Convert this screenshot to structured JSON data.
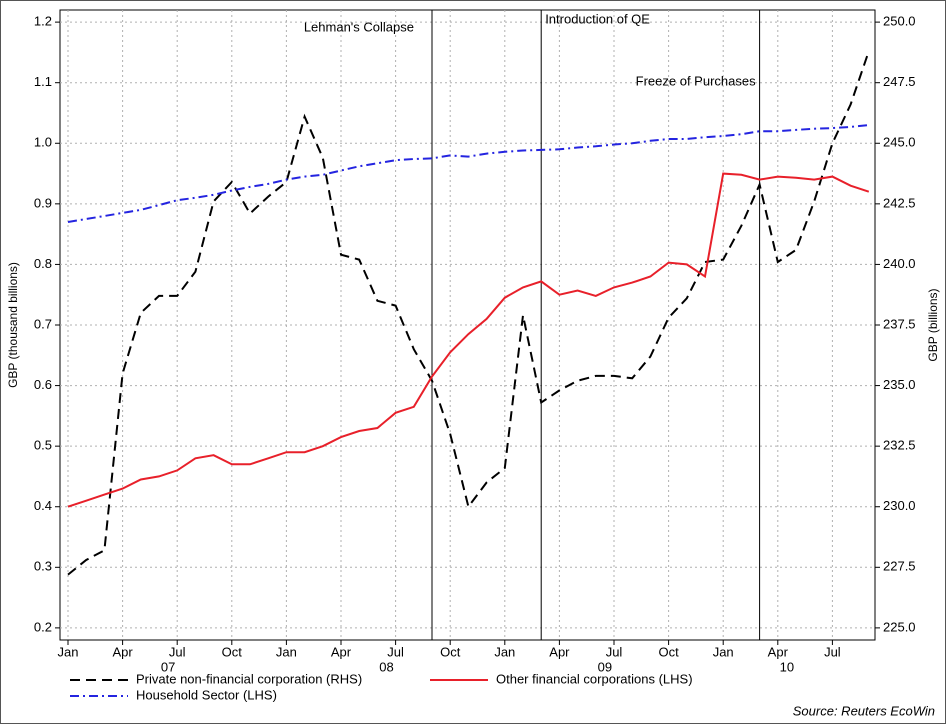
{
  "chart_data": {
    "type": "line",
    "y_label": "GBP (thousand billions)",
    "y2_label": "GBP (billions)",
    "source": "Source: Reuters EcoWin",
    "x": [
      "2007-01",
      "2007-02",
      "2007-03",
      "2007-04",
      "2007-05",
      "2007-06",
      "2007-07",
      "2007-08",
      "2007-09",
      "2007-10",
      "2007-11",
      "2007-12",
      "2008-01",
      "2008-02",
      "2008-03",
      "2008-04",
      "2008-05",
      "2008-06",
      "2008-07",
      "2008-08",
      "2008-09",
      "2008-10",
      "2008-11",
      "2008-12",
      "2009-01",
      "2009-02",
      "2009-03",
      "2009-04",
      "2009-05",
      "2009-06",
      "2009-07",
      "2009-08",
      "2009-09",
      "2009-10",
      "2009-11",
      "2009-12",
      "2010-01",
      "2010-02",
      "2010-03",
      "2010-04",
      "2010-05",
      "2010-06",
      "2010-07",
      "2010-08",
      "2010-09"
    ],
    "xticks": [
      {
        "value": "2007-01",
        "label": "Jan"
      },
      {
        "value": "2007-04",
        "label": "Apr"
      },
      {
        "value": "2007-07",
        "label": "Jul"
      },
      {
        "value": "2007-10",
        "label": "Oct"
      },
      {
        "value": "2008-01",
        "label": "Jan"
      },
      {
        "value": "2008-04",
        "label": "Apr"
      },
      {
        "value": "2008-07",
        "label": "Jul"
      },
      {
        "value": "2008-10",
        "label": "Oct"
      },
      {
        "value": "2009-01",
        "label": "Jan"
      },
      {
        "value": "2009-04",
        "label": "Apr"
      },
      {
        "value": "2009-07",
        "label": "Jul"
      },
      {
        "value": "2009-10",
        "label": "Oct"
      },
      {
        "value": "2010-01",
        "label": "Jan"
      },
      {
        "value": "2010-04",
        "label": "Apr"
      },
      {
        "value": "2010-07",
        "label": "Jul"
      }
    ],
    "year_labels": [
      {
        "value": "2007-06",
        "label": "07"
      },
      {
        "value": "2008-06",
        "label": "08"
      },
      {
        "value": "2009-06",
        "label": "09"
      },
      {
        "value": "2010-04",
        "label": "10"
      }
    ],
    "ylim": [
      0.18,
      1.22
    ],
    "yticks": [
      0.2,
      0.3,
      0.4,
      0.5,
      0.6,
      0.7,
      0.8,
      0.9,
      {
        "value": 1,
        "label": "1.0"
      },
      1.1,
      1.2
    ],
    "y2lim": [
      224.5,
      250.5
    ],
    "y2ticks": [
      {
        "value": 225,
        "label": "225.0"
      },
      {
        "value": 227.5,
        "label": "227.5"
      },
      {
        "value": 230,
        "label": "230.0"
      },
      {
        "value": 232.5,
        "label": "232.5"
      },
      {
        "value": 235,
        "label": "235.0"
      },
      {
        "value": 237.5,
        "label": "237.5"
      },
      {
        "value": 240,
        "label": "240.0"
      },
      {
        "value": 242.5,
        "label": "242.5"
      },
      {
        "value": 245,
        "label": "245.0"
      },
      {
        "value": 247.5,
        "label": "247.5"
      },
      {
        "value": 250,
        "label": "250.0"
      }
    ],
    "grid": true,
    "events": [
      {
        "x": "2008-09",
        "label": "Lehman's Collapse"
      },
      {
        "x": "2009-03",
        "label": "Introduction of QE"
      },
      {
        "x": "2010-03",
        "label": "Freeze of Purchases"
      }
    ],
    "series": [
      {
        "name": "Private non-financial corporation (RHS)",
        "color": "#000000",
        "dash": "10,6",
        "axis": "y2",
        "values": [
          227.2,
          227.8,
          228.2,
          235.5,
          238.0,
          238.7,
          238.7,
          239.7,
          242.6,
          243.4,
          242.1,
          242.8,
          243.4,
          246.1,
          244.4,
          240.4,
          240.2,
          238.5,
          238.3,
          236.5,
          235.2,
          233.0,
          230.0,
          231.0,
          231.6,
          237.9,
          234.3,
          234.8,
          235.2,
          235.4,
          235.4,
          235.3,
          236.2,
          237.8,
          238.6,
          240.1,
          240.2,
          241.6,
          243.3,
          240.1,
          240.6,
          242.6,
          245.0,
          246.6,
          248.8
        ]
      },
      {
        "name": "Other financial corporations (LHS)",
        "color": "#e8202a",
        "dash": "",
        "axis": "y",
        "values": [
          0.4,
          0.41,
          0.42,
          0.43,
          0.445,
          0.45,
          0.46,
          0.48,
          0.485,
          0.47,
          0.47,
          0.48,
          0.49,
          0.49,
          0.5,
          0.515,
          0.525,
          0.53,
          0.555,
          0.565,
          0.615,
          0.655,
          0.685,
          0.71,
          0.745,
          0.762,
          0.772,
          0.75,
          0.757,
          0.748,
          0.762,
          0.77,
          0.78,
          0.803,
          0.8,
          0.78,
          0.95,
          0.948,
          0.94,
          0.945,
          0.943,
          0.94,
          0.945,
          0.93,
          0.92
        ]
      },
      {
        "name": "Household Sector (LHS)",
        "color": "#2424e0",
        "dash": "9,4,2,4",
        "axis": "y",
        "values": [
          0.87,
          0.875,
          0.88,
          0.885,
          0.89,
          0.898,
          0.906,
          0.91,
          0.915,
          0.922,
          0.928,
          0.933,
          0.94,
          0.945,
          0.948,
          0.955,
          0.962,
          0.967,
          0.972,
          0.974,
          0.975,
          0.98,
          0.978,
          0.983,
          0.986,
          0.988,
          0.989,
          0.99,
          0.993,
          0.995,
          0.998,
          1.0,
          1.004,
          1.007,
          1.007,
          1.01,
          1.012,
          1.015,
          1.02,
          1.02,
          1.022,
          1.024,
          1.025,
          1.027,
          1.03
        ]
      }
    ]
  }
}
